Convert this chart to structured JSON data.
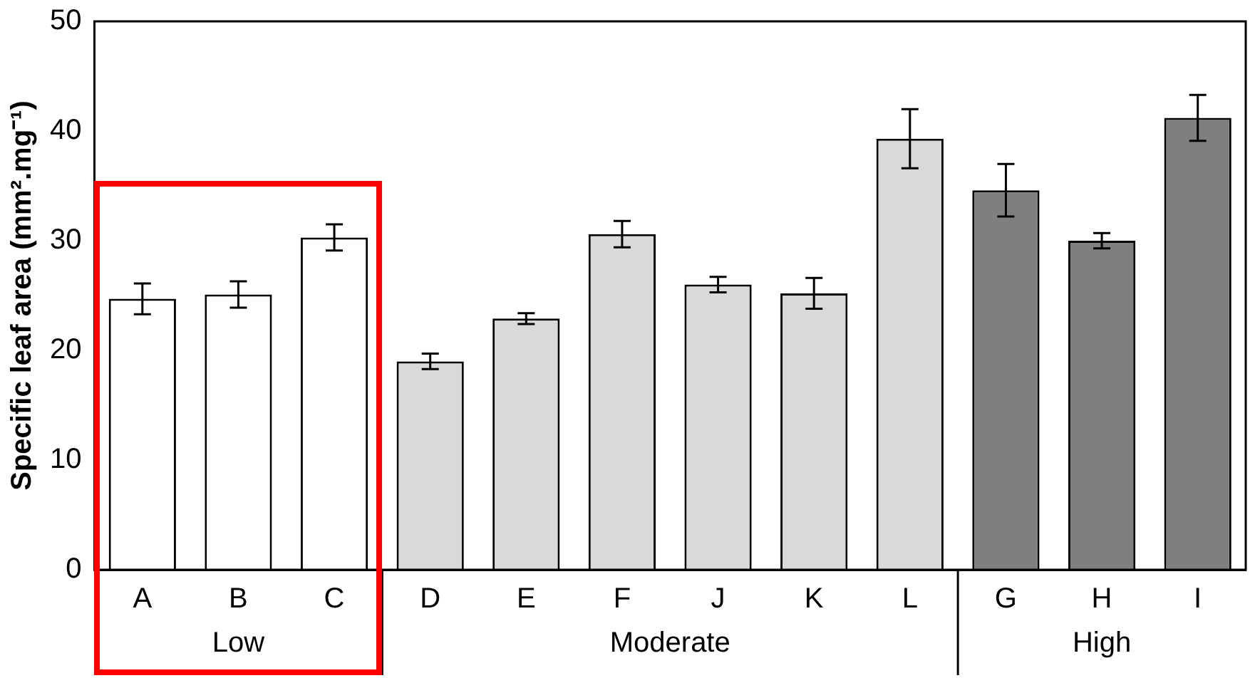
{
  "chart_data": {
    "type": "bar",
    "ylabel": "Specific leaf area (mm².mg⁻¹)",
    "categories": [
      "A",
      "B",
      "C",
      "D",
      "E",
      "F",
      "J",
      "K",
      "L",
      "G",
      "H",
      "I"
    ],
    "series": [
      {
        "name": "Low",
        "color": "#ffffff",
        "values": [
          24.7,
          25.1,
          30.3,
          null,
          null,
          null,
          null,
          null,
          null,
          null,
          null,
          null
        ],
        "errors": [
          1.4,
          1.2,
          1.2,
          null,
          null,
          null,
          null,
          null,
          null,
          null,
          null,
          null
        ]
      },
      {
        "name": "Moderate",
        "color": "#d9d9d9",
        "values": [
          null,
          null,
          null,
          19.0,
          22.9,
          30.6,
          26.0,
          25.2,
          39.3,
          null,
          null,
          null
        ],
        "errors": [
          null,
          null,
          null,
          0.7,
          0.5,
          1.2,
          0.7,
          1.4,
          2.7,
          null,
          null,
          null
        ]
      },
      {
        "name": "High",
        "color": "#7f7f7f",
        "values": [
          null,
          null,
          null,
          null,
          null,
          null,
          null,
          null,
          null,
          34.6,
          30.0,
          41.2
        ],
        "errors": [
          null,
          null,
          null,
          null,
          null,
          null,
          null,
          null,
          null,
          2.4,
          0.7,
          2.1
        ]
      }
    ],
    "ylim": [
      0,
      50
    ],
    "yticks": [
      0,
      10,
      20,
      30,
      40,
      50
    ],
    "grid": false,
    "legend": false
  }
}
